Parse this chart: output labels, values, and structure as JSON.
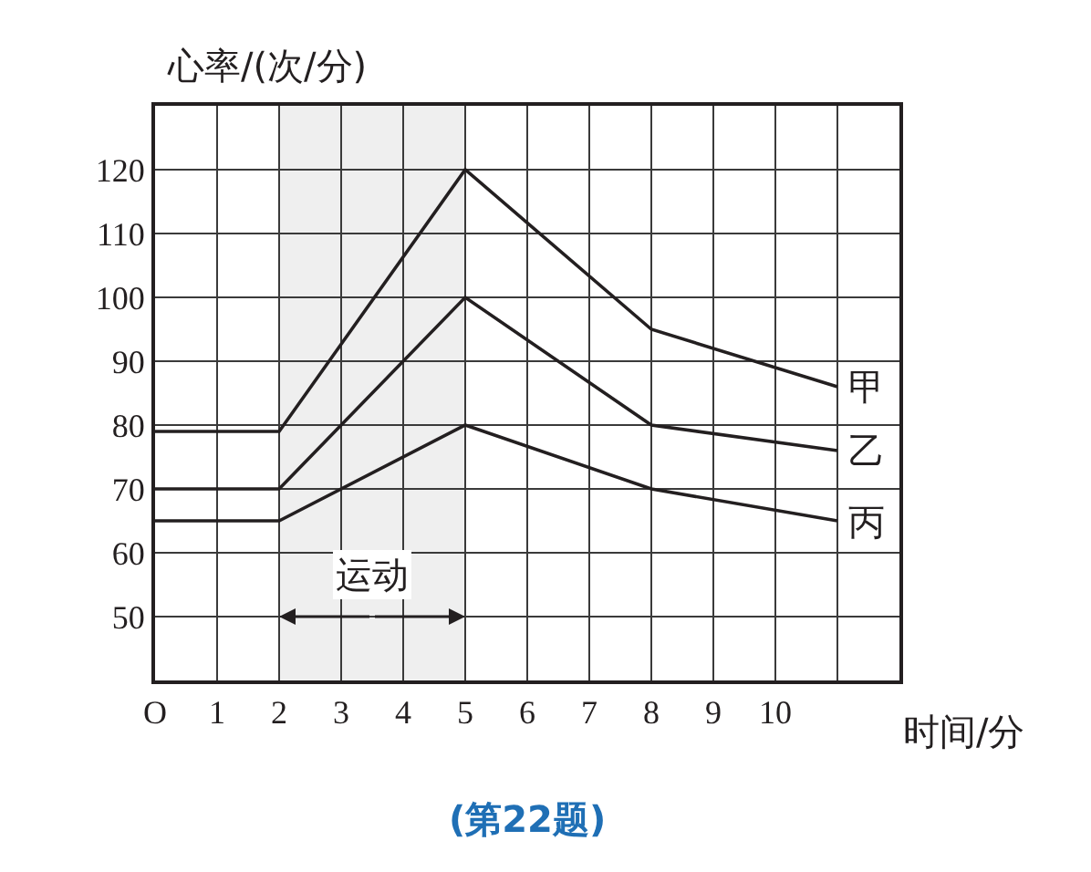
{
  "chart_data": {
    "type": "line",
    "xlabel": "时间/分",
    "ylabel": "心率/(次/分)",
    "x": [
      0,
      2,
      5,
      8,
      11
    ],
    "series": [
      {
        "name": "甲",
        "color": "#231f20",
        "values": [
          79,
          79,
          120,
          95,
          86
        ]
      },
      {
        "name": "乙",
        "color": "#231f20",
        "values": [
          70,
          70,
          100,
          80,
          76
        ]
      },
      {
        "name": "丙",
        "color": "#231f20",
        "values": [
          65,
          65,
          80,
          70,
          65
        ]
      }
    ],
    "xlim": [
      0,
      12
    ],
    "ylim": [
      40,
      130
    ],
    "xticks": [
      {
        "value": 0,
        "label": "O"
      },
      1,
      2,
      3,
      4,
      5,
      6,
      7,
      8,
      9,
      10,
      {
        "value": 11,
        "label": null
      },
      {
        "value": 12,
        "label": null
      }
    ],
    "yticks": [
      50,
      60,
      70,
      80,
      90,
      100,
      110,
      120,
      {
        "value": 130,
        "label": null
      }
    ],
    "bands": [
      {
        "axis": "x",
        "from": 2,
        "to": 5,
        "label": "运动",
        "color": "#231f20"
      }
    ],
    "annotations": [
      "(第22题)"
    ],
    "grid": true,
    "legend": false,
    "marker": "none",
    "line_style": "solid"
  }
}
